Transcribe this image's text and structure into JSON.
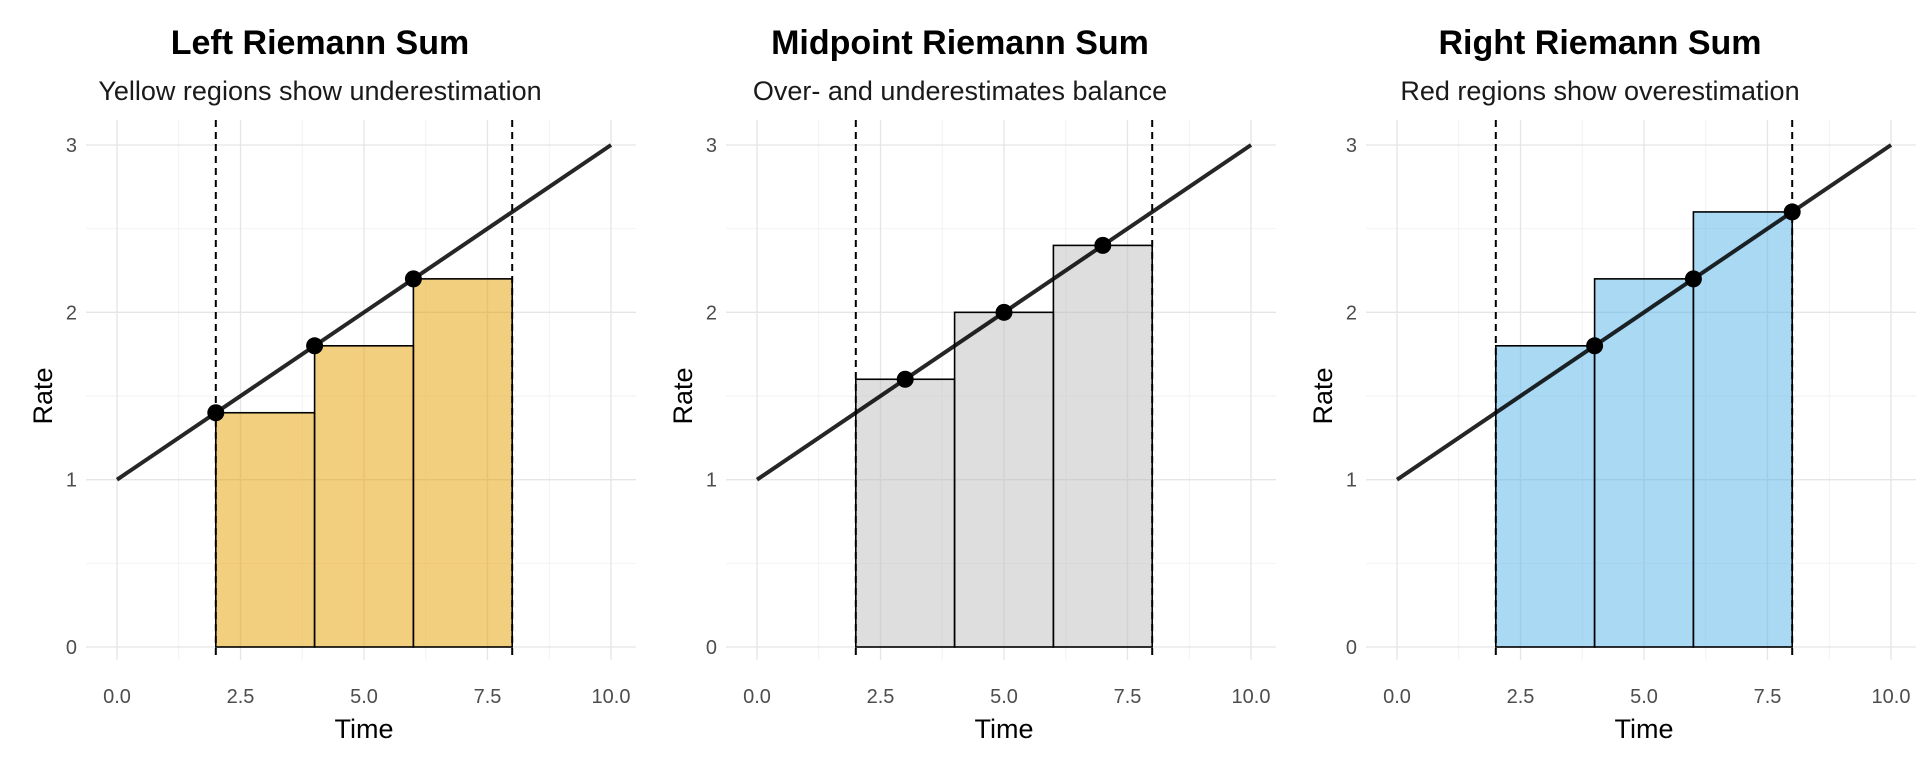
{
  "chart_data": [
    {
      "type": "bar",
      "title": "Left Riemann Sum",
      "subtitle": "Yellow regions show underestimation",
      "xlabel": "Time",
      "ylabel": "Rate",
      "xlim": [
        0,
        10
      ],
      "ylim": [
        0,
        3
      ],
      "x_ticks": [
        "0.0",
        "2.5",
        "5.0",
        "7.5",
        "10.0"
      ],
      "y_ticks": [
        "0",
        "1",
        "2",
        "3"
      ],
      "grid": true,
      "function": {
        "x": [
          0,
          10
        ],
        "y": [
          1,
          3
        ]
      },
      "interval": [
        2,
        8
      ],
      "bars": [
        {
          "x_start": 2,
          "x_end": 4,
          "height": 1.4
        },
        {
          "x_start": 4,
          "x_end": 6,
          "height": 1.8
        },
        {
          "x_start": 6,
          "x_end": 8,
          "height": 2.2
        }
      ],
      "sample_points": [
        {
          "x": 2,
          "y": 1.4
        },
        {
          "x": 4,
          "y": 1.8
        },
        {
          "x": 6,
          "y": 2.2
        }
      ],
      "bar_color": "#E69F00"
    },
    {
      "type": "bar",
      "title": "Midpoint Riemann Sum",
      "subtitle": "Over- and underestimates balance",
      "xlabel": "Time",
      "ylabel": "Rate",
      "xlim": [
        0,
        10
      ],
      "ylim": [
        0,
        3
      ],
      "x_ticks": [
        "0.0",
        "2.5",
        "5.0",
        "7.5",
        "10.0"
      ],
      "y_ticks": [
        "0",
        "1",
        "2",
        "3"
      ],
      "grid": true,
      "function": {
        "x": [
          0,
          10
        ],
        "y": [
          1,
          3
        ]
      },
      "interval": [
        2,
        8
      ],
      "bars": [
        {
          "x_start": 2,
          "x_end": 4,
          "height": 1.6
        },
        {
          "x_start": 4,
          "x_end": 6,
          "height": 2.0
        },
        {
          "x_start": 6,
          "x_end": 8,
          "height": 2.4
        }
      ],
      "sample_points": [
        {
          "x": 3,
          "y": 1.6
        },
        {
          "x": 5,
          "y": 2.0
        },
        {
          "x": 7,
          "y": 2.4
        }
      ],
      "bar_color": "#BDBDBD"
    },
    {
      "type": "bar",
      "title": "Right Riemann Sum",
      "subtitle": "Red regions show overestimation",
      "xlabel": "Time",
      "ylabel": "Rate",
      "xlim": [
        0,
        10
      ],
      "ylim": [
        0,
        3
      ],
      "x_ticks": [
        "0.0",
        "2.5",
        "5.0",
        "7.5",
        "10.0"
      ],
      "y_ticks": [
        "0",
        "1",
        "2",
        "3"
      ],
      "grid": true,
      "function": {
        "x": [
          0,
          10
        ],
        "y": [
          1,
          3
        ]
      },
      "interval": [
        2,
        8
      ],
      "bars": [
        {
          "x_start": 2,
          "x_end": 4,
          "height": 1.8
        },
        {
          "x_start": 4,
          "x_end": 6,
          "height": 2.2
        },
        {
          "x_start": 6,
          "x_end": 8,
          "height": 2.6
        }
      ],
      "sample_points": [
        {
          "x": 4,
          "y": 1.8
        },
        {
          "x": 6,
          "y": 2.2
        },
        {
          "x": 8,
          "y": 2.6
        }
      ],
      "bar_color": "#56B4E9"
    }
  ]
}
